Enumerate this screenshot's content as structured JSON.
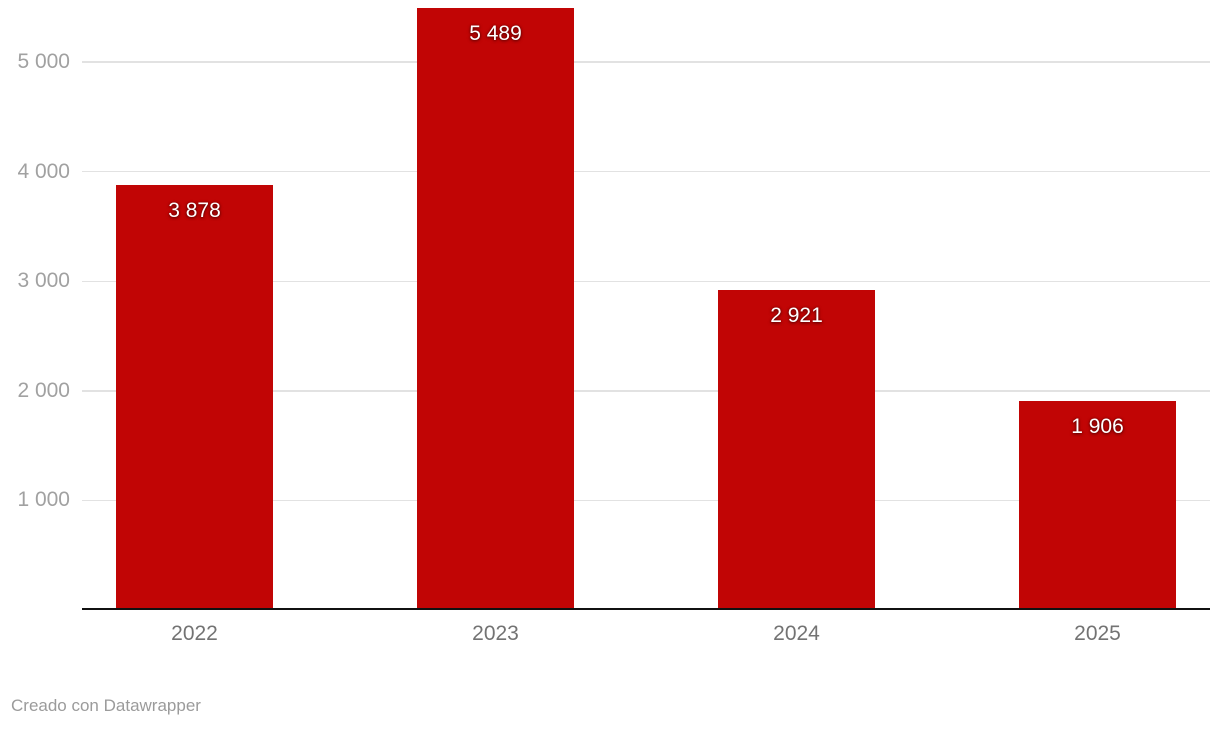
{
  "chart_data": {
    "type": "bar",
    "categories": [
      "2022",
      "2023",
      "2024",
      "2025"
    ],
    "values": [
      3878,
      5489,
      2921,
      1906
    ],
    "value_labels": [
      "3 878",
      "5 489",
      "2 921",
      "1 906"
    ],
    "title": "",
    "xlabel": "",
    "ylabel": "",
    "ylim": [
      0,
      5566
    ],
    "yticks": [
      1000,
      2000,
      3000,
      4000,
      5000
    ],
    "ytick_labels": [
      "1 000",
      "2 000",
      "3 000",
      "4 000",
      "5 000"
    ],
    "grid": true,
    "legend_position": "none",
    "colors": {
      "bar": "#c10505",
      "value_label": "#ffffff",
      "axis_line": "#111111",
      "gridline": "#e2e2e2",
      "ytick_text": "#a1a1a1",
      "xtick_text": "#737373"
    }
  },
  "footer": {
    "credit": "Creado con Datawrapper"
  }
}
